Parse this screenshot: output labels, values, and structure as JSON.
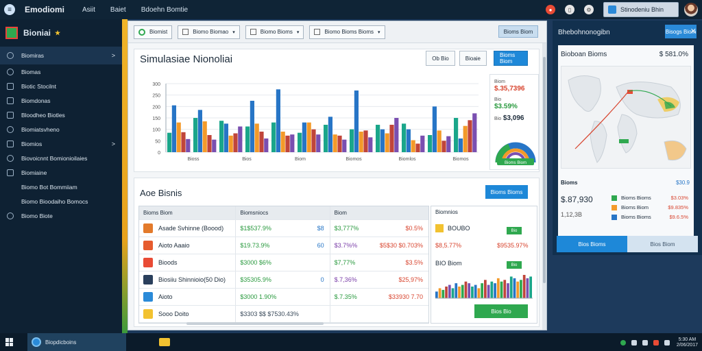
{
  "topbar": {
    "brand": "Emodiomi",
    "nav": [
      "Asiit",
      "Baiet",
      "Bdoehn Bomtie"
    ],
    "user_label": "Stinodeniu Bhin"
  },
  "sidebar": {
    "title": "Bioniai",
    "items": [
      {
        "label": "Biomiras",
        "icon": "circle-icon",
        "chevron": ">"
      },
      {
        "label": "Biomas",
        "icon": "circle-icon"
      },
      {
        "label": "Biotic Stocilnt",
        "icon": "chart-icon"
      },
      {
        "label": "Biomdonas",
        "icon": "table-icon"
      },
      {
        "label": "Bloodheo Biotles",
        "icon": "folder-icon"
      },
      {
        "label": "Biomiatsvheno",
        "icon": "globe-icon"
      },
      {
        "label": "Biomios",
        "icon": "tag-icon",
        "chevron": ">"
      },
      {
        "label": "Biovoicnnt Bomionioilaies",
        "icon": "cloud-icon"
      },
      {
        "label": "Biomiaine",
        "icon": "bell-icon"
      },
      {
        "label": "Biomo Bot Bommiiam",
        "icon": "none"
      },
      {
        "label": "Biomo Bioodaiho Bomocs",
        "icon": "none"
      },
      {
        "label": "Biomo Biote",
        "icon": "gear-icon"
      }
    ]
  },
  "main": {
    "tabs": [
      "Biomist",
      "Biomo Biomao",
      "Biomo Bioms",
      "Biomo Bioms Bioms"
    ],
    "tool_button": "Bioms Biom",
    "chart_title": "Simulasiae Nionoliai",
    "btn_a": "Ob Bio",
    "btn_b": "Bioaie",
    "btn_primary": "Bioms Biom",
    "metrics": [
      {
        "label": "Biom",
        "value": "$.35,7396"
      },
      {
        "label": "Bio",
        "value": "$3.59%"
      },
      {
        "label": "Bio",
        "value": "$3,096"
      }
    ],
    "gauge_label": "Bioms Biom"
  },
  "chart_data": {
    "type": "bar",
    "yticks": [
      "300",
      "250",
      "200",
      "150",
      "100",
      "50",
      "0"
    ],
    "xticks": [
      "Bioss",
      "Bios",
      "Biom",
      "Biomos",
      "Biomlos",
      "Biomos"
    ],
    "series": [
      {
        "color": "#1aa68a",
        "values": [
          3.4,
          6.0,
          5.5,
          4.5,
          5.2,
          3.4,
          4.8,
          4.0,
          4.8,
          5.0,
          3.0,
          6.0
        ]
      },
      {
        "color": "#2775c6",
        "values": [
          8.2,
          7.4,
          5.0,
          9.0,
          11.0,
          5.2,
          6.2,
          10.8,
          4.0,
          4.0,
          8.0,
          2.4
        ]
      },
      {
        "color": "#f39a2a",
        "values": [
          5.2,
          5.4,
          2.9,
          5.0,
          3.6,
          5.2,
          3.1,
          3.6,
          3.3,
          2.1,
          3.8,
          4.6
        ]
      },
      {
        "color": "#c0453a",
        "values": [
          3.5,
          3.0,
          3.3,
          3.6,
          2.9,
          4.0,
          2.9,
          3.8,
          4.8,
          1.5,
          2.0,
          5.6
        ]
      },
      {
        "color": "#7a4fb0",
        "values": [
          2.3,
          2.2,
          4.5,
          2.4,
          3.1,
          3.1,
          2.2,
          2.6,
          6.0,
          2.9,
          2.8,
          6.8
        ]
      }
    ],
    "ylim": [
      0,
      12
    ]
  },
  "lower": {
    "title": "Aoe Bisnis",
    "action_button": "Bioms Bioms",
    "headers": [
      "Bioms Biom",
      "Biomsniocs",
      "Biom"
    ],
    "rows": [
      {
        "name": "Asade Svhinne (Boood)",
        "icon_color": "#e37a2b",
        "c2": "$1$537.9%",
        "c2b": "$8",
        "c3": "$3,777%",
        "c3b": "$0.5%"
      },
      {
        "name": "Aioto Aaaio",
        "icon_color": "#e65b2e",
        "c2": "$19.73.9%",
        "c2b": "60",
        "c3": "$3.7%%",
        "c3b": "$5$30 $0.703%"
      },
      {
        "name": "Bioods",
        "icon_color": "#e94b35",
        "c2": "$3000 $6%",
        "c2b": "",
        "c3": "$7,77%",
        "c3b": "$3.5%"
      },
      {
        "name": "Biosiiu Shinnioio(50 Dio)",
        "icon_color": "#2a3f5c",
        "c2": "$35305.9%",
        "c2b": "0",
        "c3": "$.7,36%",
        "c3b": "$25,97%"
      },
      {
        "name": "Aioto",
        "icon_color": "#2a8ad8",
        "c2": "$3000 1.90%",
        "c2b": "",
        "c3": "$.7.35%",
        "c3b": "$33930 7.70"
      },
      {
        "name": "Sooo Doito",
        "icon_color": "#f2c230",
        "c2": "$3303 $$ $7530.43%",
        "c2b": "",
        "c3": "",
        "c3b": ""
      }
    ],
    "side_title": "Biomnios",
    "side_rows": [
      {
        "label": "BOUBO",
        "badge": "Bio"
      },
      {
        "label": "$8,5.77%",
        "value": "$9535.97%"
      },
      {
        "label": "BIO Biom",
        "badge": "Bio"
      }
    ],
    "ok_button": "Bios Bio",
    "mini_bars": [
      4,
      6,
      5,
      7,
      8,
      6,
      9,
      7,
      8,
      10,
      9,
      7,
      8,
      6,
      9,
      11,
      8,
      10,
      9,
      12,
      10,
      11,
      9,
      13,
      12,
      10,
      11,
      14,
      12,
      13
    ]
  },
  "rpanel": {
    "title": "Bhebohnonogibn",
    "head_button": "Bisogs Biom",
    "map_title": "Bioboan Bioms",
    "map_value": "$ 581.0%",
    "section": "Bioms",
    "big_value": "$.87,930",
    "sub_value": "1,12,3B",
    "legend": [
      {
        "color": "#2fa84f",
        "label": "Bioms Bioms",
        "value": "$3.03%"
      },
      {
        "color": "#f39a2a",
        "label": "Bioms Biom",
        "value": "$9.835%"
      },
      {
        "color": "#2775c6",
        "label": "Bioms Bioms",
        "value": "$9.6.5%"
      }
    ],
    "legend_head_value": "$30.9",
    "tab1": "Bios Bioms",
    "tab2": "Bios Biom"
  },
  "taskbar": {
    "app_label": "Biopdicboins",
    "clock_time": "5:30 AM",
    "clock_date": "2/06/2017"
  }
}
